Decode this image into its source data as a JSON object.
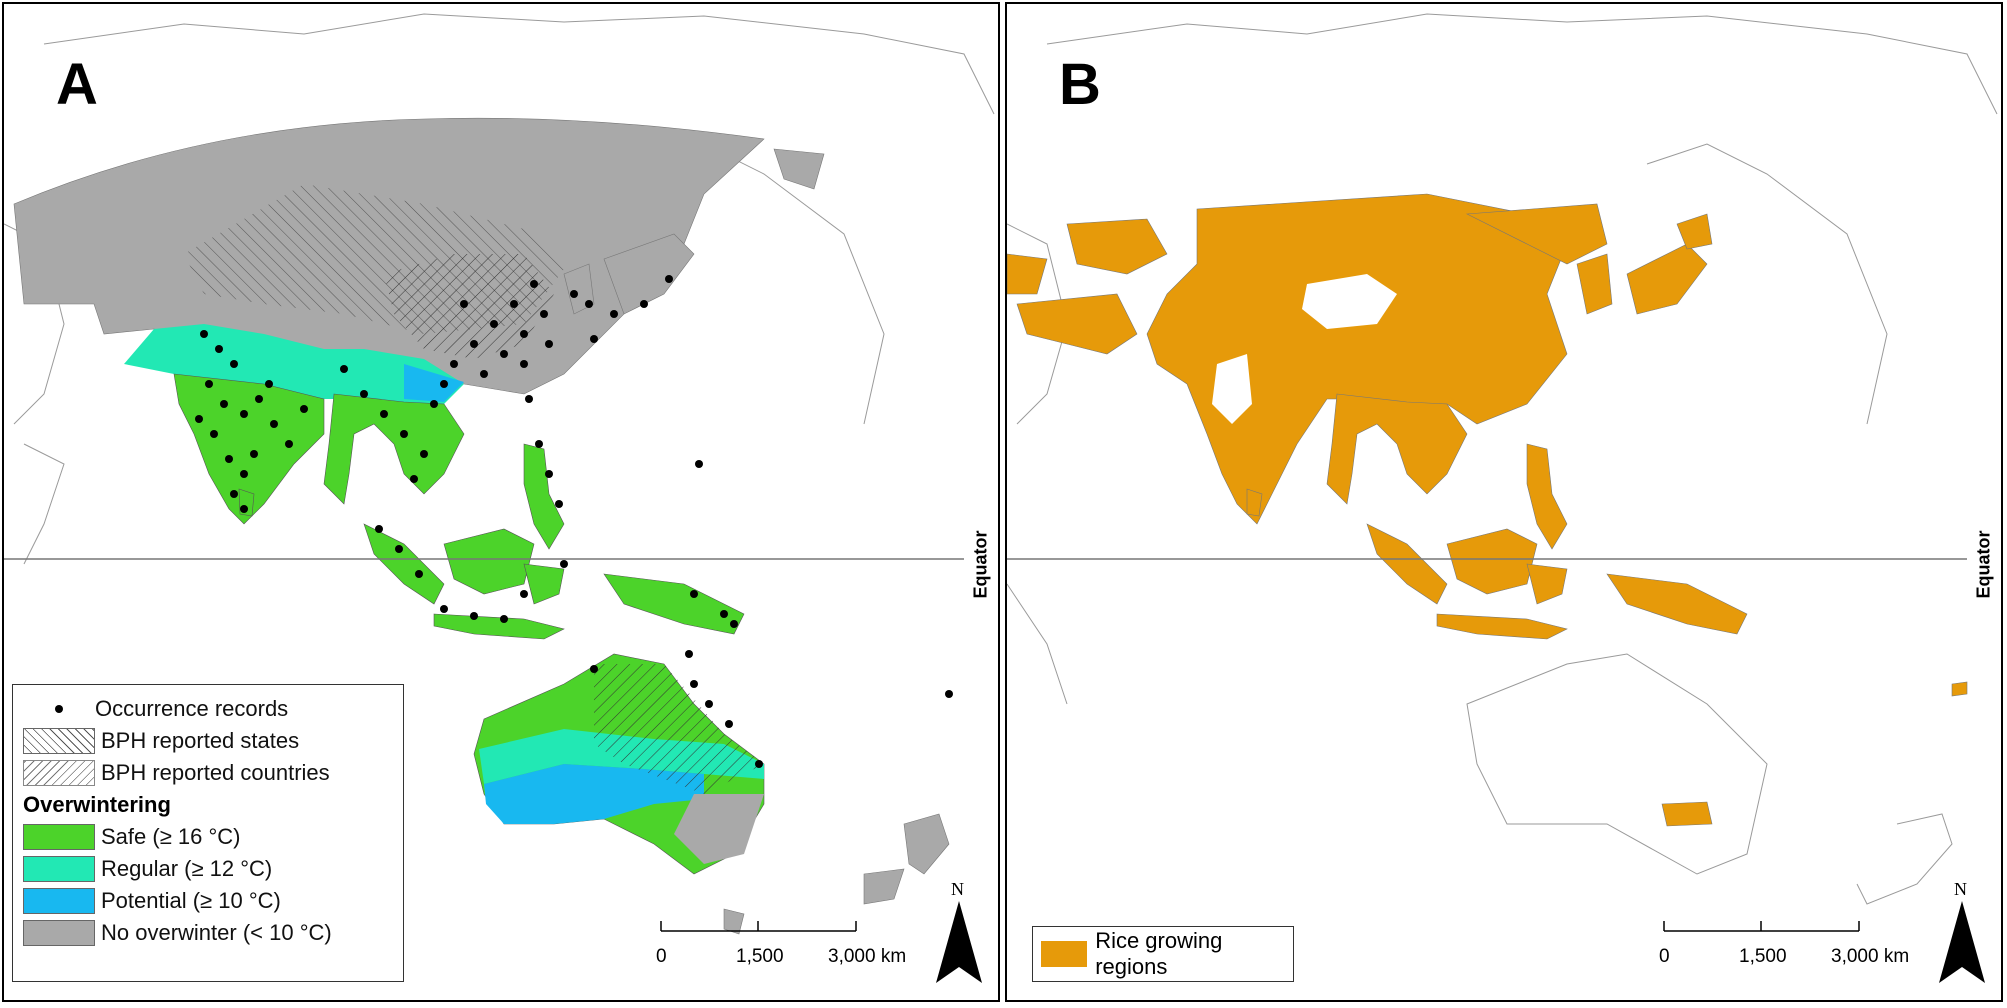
{
  "panel_a": {
    "letter": "A",
    "equator_label": "Equator",
    "legend": {
      "occurrence": "Occurrence records",
      "bph_states": "BPH reported states",
      "bph_countries": "BPH reported countries",
      "heading": "Overwintering",
      "safe": "Safe (≥ 16 °C)",
      "regular": "Regular (≥ 12 °C)",
      "potential": "Potential (≥ 10 °C)",
      "none": "No overwinter (< 10 °C)"
    },
    "scale": {
      "ticks": [
        "0",
        "1,500",
        "3,000 km"
      ]
    },
    "north": "N"
  },
  "panel_b": {
    "letter": "B",
    "equator_label": "Equator",
    "legend": {
      "rice": "Rice growing regions"
    },
    "scale": {
      "ticks": [
        "0",
        "1,500",
        "3,000 km"
      ]
    },
    "north": "N"
  },
  "colors": {
    "safe": "#4cd32a",
    "regular": "#22e8b4",
    "potential": "#18b8f0",
    "none": "#a9a9a9",
    "rice": "#e69a0a",
    "records": "#000000"
  }
}
